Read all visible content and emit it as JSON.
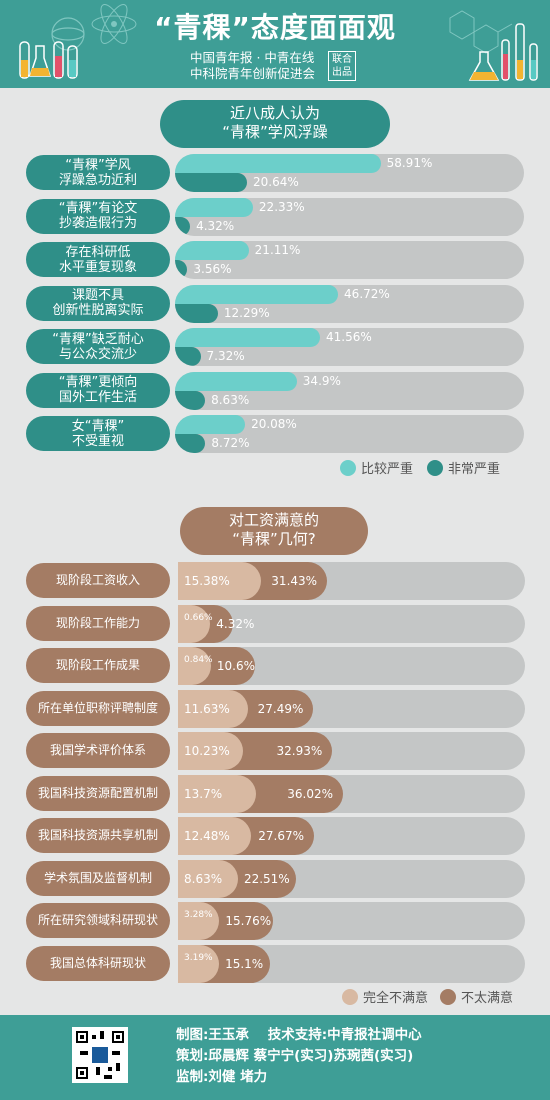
{
  "header": {
    "title": "“青稞”态度面面观",
    "publisher_line1": "中国青年报 · 中青在线",
    "publisher_line2": "中科院青年创新促进会",
    "stamp": "联合出品"
  },
  "section1": {
    "title_line1": "近八成人认为",
    "title_line2": "“青稞”学风浮躁",
    "legend": [
      "比较严重",
      "非常严重"
    ]
  },
  "section2": {
    "title_line1": "对工资满意的",
    "title_line2": "“青稞”几何?",
    "legend": [
      "完全不满意",
      "不太满意"
    ]
  },
  "chart_data": [
    {
      "type": "bar",
      "title": "近八成人认为“青稞”学风浮躁",
      "categories": [
        "“青稞”学风\n浮躁急功近利",
        "“青稞”有论文\n抄袭造假行为",
        "存在科研低\n水平重复现象",
        "课题不具\n创新性脱离实际",
        "“青稞”缺乏耐心\n与公众交流少",
        "“青稞”更倾向\n国外工作生活",
        "女“青稞”\n不受重视"
      ],
      "series": [
        {
          "name": "比较严重",
          "values": [
            58.91,
            22.33,
            21.11,
            46.72,
            41.56,
            34.9,
            20.08
          ],
          "labels": [
            "58.91%",
            "22.33%",
            "21.11%",
            "46.72%",
            "41.56%",
            "34.9%",
            "20.08%"
          ],
          "color": "#6ccfca"
        },
        {
          "name": "非常严重",
          "values": [
            20.64,
            4.32,
            3.56,
            12.29,
            7.32,
            8.63,
            8.72
          ],
          "labels": [
            "20.64%",
            "4.32%",
            "3.56%",
            "12.29%",
            "7.32%",
            "8.63%",
            "8.72%"
          ],
          "color": "#2f8f88"
        }
      ]
    },
    {
      "type": "bar",
      "title": "对工资满意的“青稞”几何?",
      "categories": [
        "现阶段工资收入",
        "现阶段工作能力",
        "现阶段工作成果",
        "所在单位职称评聘制度",
        "我国学术评价体系",
        "我国科技资源配置机制",
        "我国科技资源共享机制",
        "学术氛围及监督机制",
        "所在研究领域科研现状",
        "我国总体科研现状"
      ],
      "series": [
        {
          "name": "完全不满意",
          "values": [
            15.38,
            0.66,
            0.84,
            11.63,
            10.23,
            13.7,
            12.48,
            8.63,
            3.28,
            3.19
          ],
          "labels": [
            "15.38%",
            "0.66%",
            "0.84%",
            "11.63%",
            "10.23%",
            "13.7%",
            "12.48%",
            "8.63%",
            "3.28%",
            "3.19%"
          ],
          "color": "#d8b9a2"
        },
        {
          "name": "不太满意",
          "values": [
            31.43,
            4.32,
            10.6,
            27.49,
            32.93,
            36.02,
            27.67,
            22.51,
            15.76,
            15.1
          ],
          "labels": [
            "31.43%",
            "4.32%",
            "10.6%",
            "27.49%",
            "32.93%",
            "36.02%",
            "27.67%",
            "22.51%",
            "15.76%",
            "15.1%"
          ],
          "color": "#a47c64"
        }
      ]
    }
  ],
  "footer": {
    "line1": "制图:王玉承    技术支持:中青报社调中心",
    "line2": "策划:邱晨辉 蔡宁宁(实习)苏琬茜(实习)",
    "line3": "监制:刘健 堵力"
  }
}
